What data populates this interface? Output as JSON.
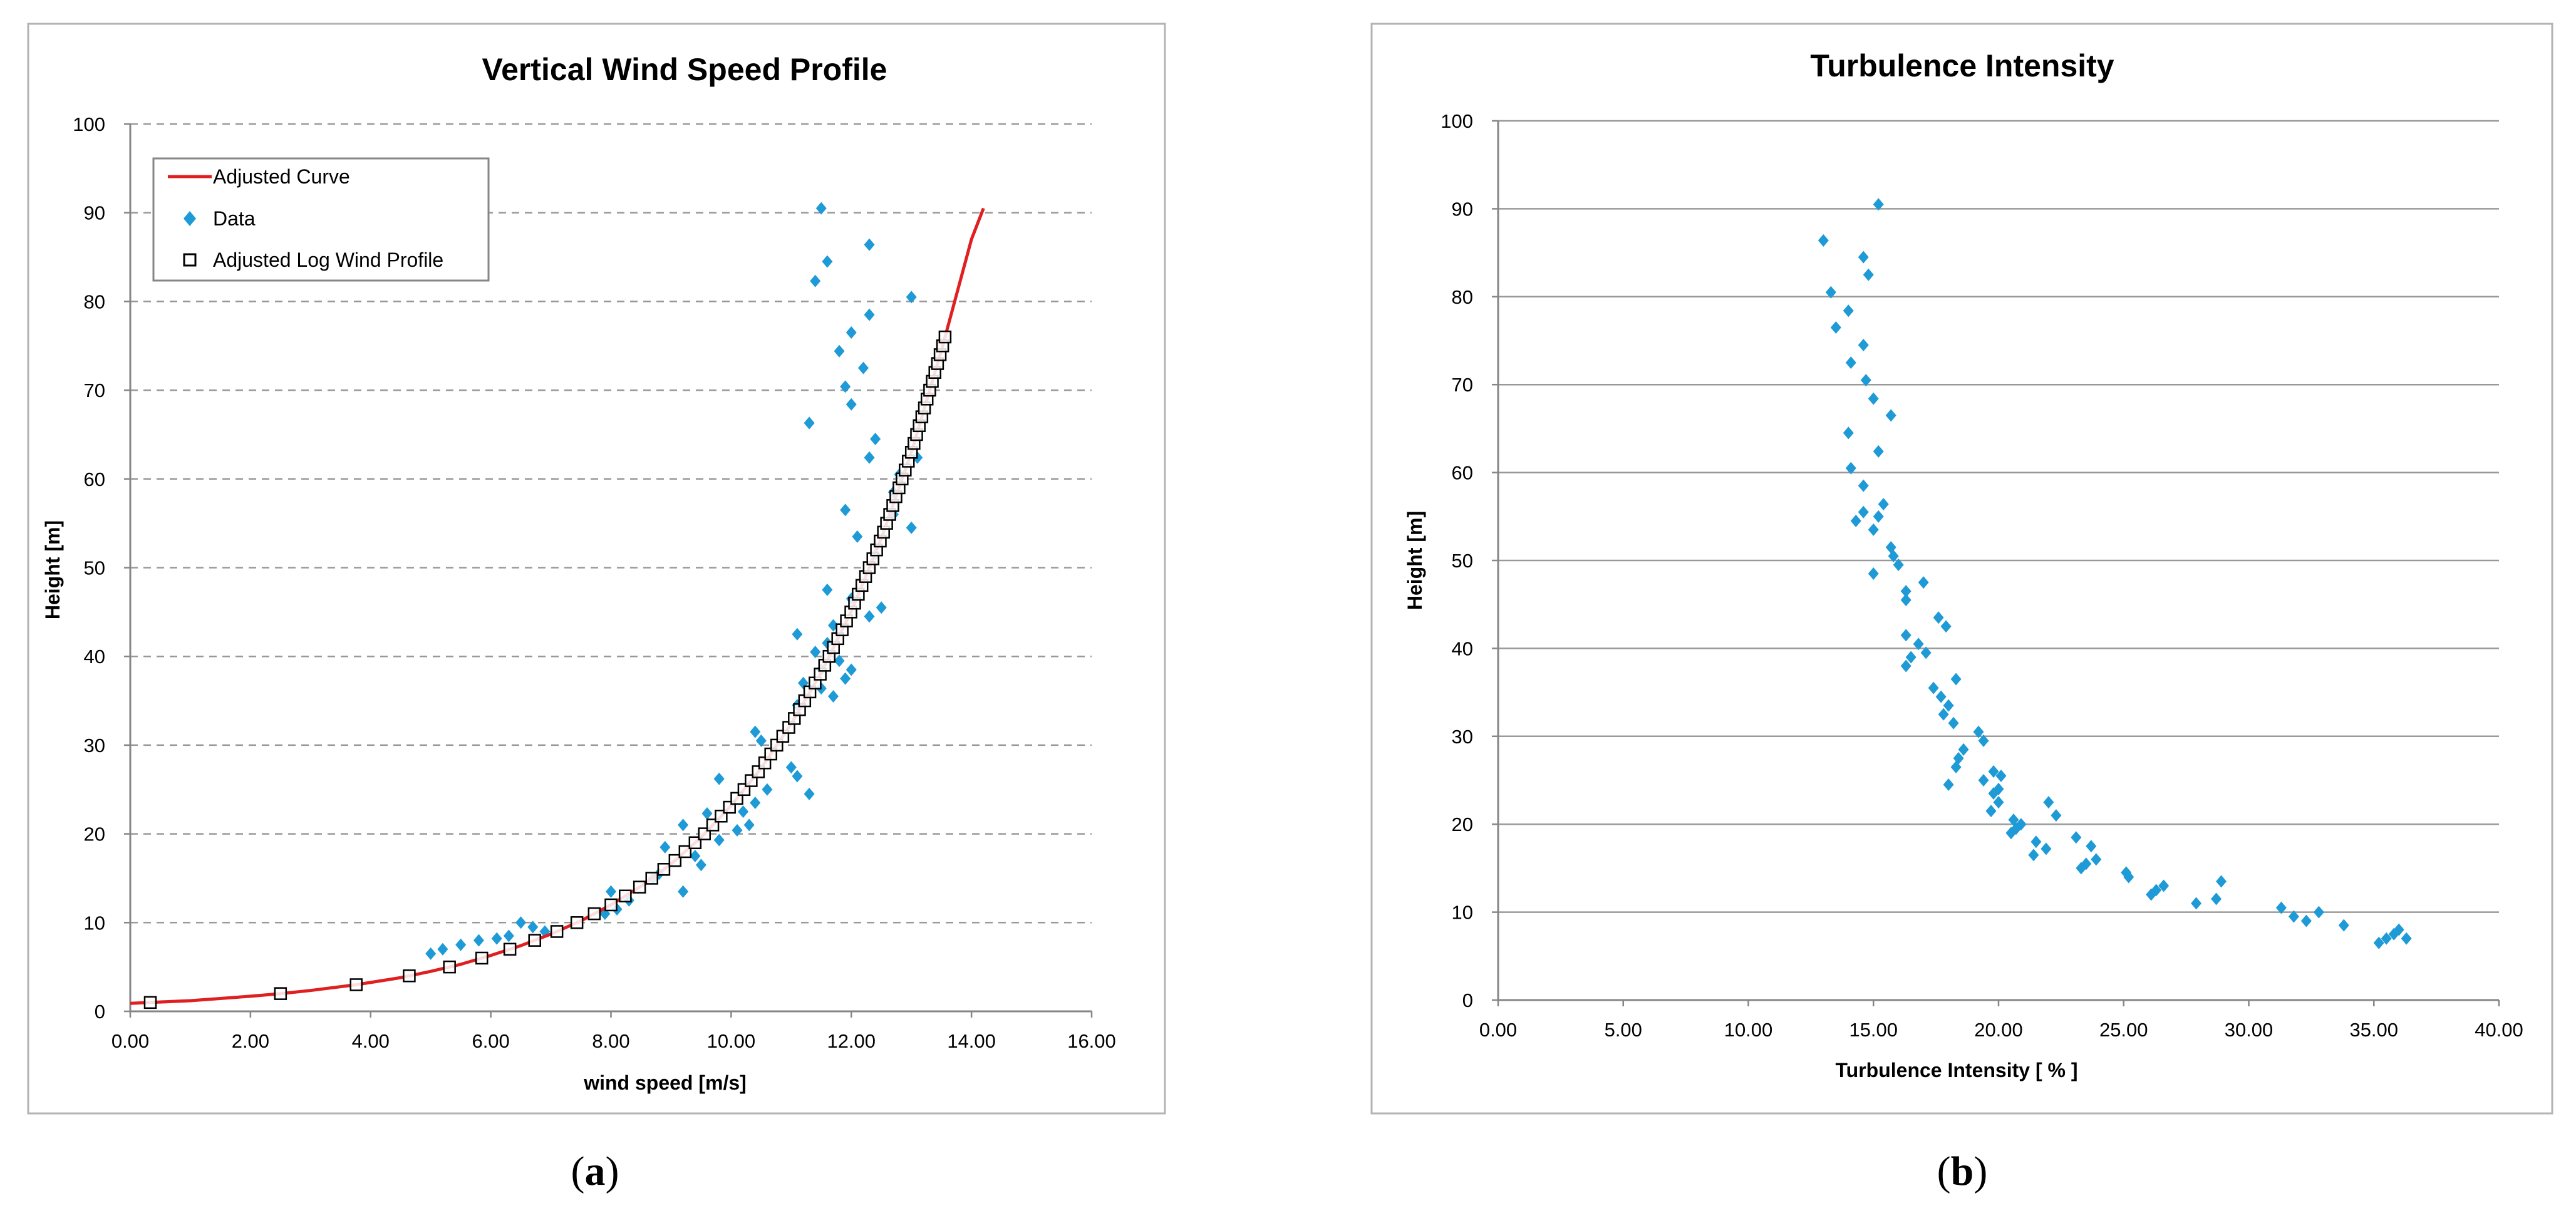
{
  "panel_labels": {
    "a": "a",
    "b": "b"
  },
  "colors": {
    "curve": "#e02020",
    "data": "#1e9ad6",
    "marker_edge": "#000000",
    "grid": "#999999",
    "frame": "#b3b3b3",
    "axis": "#868686"
  },
  "chart_data": [
    {
      "type": "scatter",
      "title": "Vertical Wind Speed Profile",
      "xlabel": "wind speed [m/s]",
      "ylabel": "Height [m]",
      "xlim": [
        0,
        16
      ],
      "ylim": [
        0,
        100
      ],
      "xticks": [
        "0.00",
        "2.00",
        "4.00",
        "6.00",
        "8.00",
        "10.00",
        "12.00",
        "14.00",
        "16.00"
      ],
      "yticks": [
        "0",
        "10",
        "20",
        "30",
        "40",
        "50",
        "60",
        "70",
        "80",
        "90",
        "100"
      ],
      "grid": "horizontal dashed",
      "legend": {
        "position": "top-left",
        "entries": [
          "Adjusted Curve",
          "Data",
          "Adjusted Log Wind Profile"
        ]
      },
      "series": [
        {
          "name": "Adjusted Curve",
          "kind": "line",
          "x": [
            0.0,
            1.0,
            2.0,
            2.5,
            3.0,
            3.76,
            4.5,
            5.0,
            5.5,
            6.0,
            6.5,
            7.0,
            7.5,
            8.0,
            8.5,
            9.0,
            9.5,
            10.0,
            10.5,
            11.0,
            11.5,
            12.0,
            12.5,
            13.0,
            13.5,
            14.0,
            14.2
          ],
          "y": [
            0.9,
            1.2,
            1.7,
            2.0,
            2.35,
            3.0,
            3.8,
            4.5,
            5.3,
            6.3,
            7.4,
            8.7,
            10.2,
            12.0,
            14.1,
            16.6,
            19.6,
            23.2,
            27.4,
            32.4,
            38.2,
            45.1,
            53.3,
            63.0,
            74.5,
            87.0,
            90.5
          ]
        },
        {
          "name": "Data",
          "kind": "points",
          "x": [
            11.5,
            11.4,
            11.6,
            12.3,
            11.3,
            13.0,
            12.3,
            12.0,
            11.8,
            12.2,
            11.9,
            12.0,
            11.3,
            12.4,
            13.1,
            12.3,
            12.8,
            11.9,
            12.7,
            13.0,
            12.7,
            12.1,
            12.4,
            11.6,
            12.3,
            12.5,
            12.0,
            11.7,
            11.1,
            11.6,
            11.8,
            11.4,
            12.0,
            11.9,
            11.5,
            11.7,
            11.1,
            11.2,
            11.5,
            10.4,
            10.5,
            11.0,
            11.1,
            11.3,
            10.6,
            9.8,
            10.4,
            10.2,
            9.2,
            9.6,
            10.1,
            8.9,
            10.3,
            9.5,
            9.8,
            8.8,
            9.4,
            8.0,
            8.3,
            8.1,
            7.9,
            8.7,
            9.2,
            6.5,
            6.7,
            6.9,
            6.3,
            6.1,
            5.8,
            5.5,
            5.2,
            5.0
          ],
          "y": [
            90.5,
            82.3,
            84.5,
            86.4,
            66.3,
            80.5,
            78.5,
            76.5,
            74.4,
            72.5,
            70.4,
            68.4,
            66.3,
            64.5,
            62.4,
            62.4,
            60.5,
            56.5,
            58.5,
            54.5,
            56.0,
            53.5,
            51.5,
            47.5,
            44.5,
            45.5,
            46.5,
            43.5,
            42.5,
            41.5,
            39.5,
            40.5,
            38.5,
            37.5,
            36.4,
            35.5,
            34.5,
            37.0,
            38.5,
            31.5,
            30.5,
            27.5,
            26.5,
            24.5,
            25.0,
            26.2,
            23.5,
            22.5,
            21.0,
            22.3,
            20.4,
            18.5,
            21.0,
            16.5,
            19.3,
            15.5,
            17.5,
            13.5,
            12.5,
            11.5,
            11.0,
            15.0,
            13.5,
            10.0,
            9.5,
            9.0,
            8.5,
            8.2,
            8.0,
            7.5,
            7.0,
            6.5
          ]
        },
        {
          "name": "Adjusted Log Wind Profile",
          "kind": "markers",
          "y": [
            1,
            2,
            3,
            4,
            5,
            6,
            7,
            8,
            9,
            10,
            11,
            12,
            13,
            14,
            15,
            16,
            17,
            18,
            19,
            20,
            21,
            22,
            23,
            24,
            25,
            26,
            27,
            28,
            29,
            30,
            31,
            32,
            33,
            34,
            35,
            36,
            37,
            38,
            39,
            40,
            41,
            42,
            43,
            44,
            45,
            46,
            47,
            48,
            49,
            50,
            51,
            52,
            53,
            54,
            55,
            56,
            57,
            58,
            59,
            60,
            61,
            62,
            63,
            64,
            65,
            66,
            67,
            68,
            69,
            70,
            71,
            72,
            73,
            74,
            75,
            76
          ]
        }
      ]
    },
    {
      "type": "scatter",
      "title": "Turbulence Intensity",
      "xlabel": "Turbulence Intensity [ % ]",
      "ylabel": "Height [m]",
      "xlim": [
        0,
        40
      ],
      "ylim": [
        0,
        100
      ],
      "xticks": [
        "0.00",
        "5.00",
        "10.00",
        "15.00",
        "20.00",
        "25.00",
        "30.00",
        "35.00",
        "40.00"
      ],
      "yticks": [
        "0",
        "10",
        "20",
        "30",
        "40",
        "50",
        "60",
        "70",
        "80",
        "90",
        "100"
      ],
      "grid": "horizontal solid",
      "series": [
        {
          "name": "Data",
          "kind": "points",
          "x": [
            15.2,
            13.0,
            14.6,
            14.8,
            13.3,
            14.0,
            13.5,
            14.6,
            14.1,
            14.7,
            15.0,
            15.7,
            15.2,
            14.0,
            15.4,
            14.1,
            14.6,
            15.2,
            14.3,
            14.6,
            15.0,
            15.7,
            15.8,
            16.3,
            15.0,
            17.0,
            16.0,
            16.3,
            17.6,
            17.9,
            16.3,
            16.8,
            17.1,
            16.5,
            16.3,
            18.3,
            17.4,
            17.7,
            18.0,
            17.8,
            18.2,
            19.2,
            18.6,
            18.4,
            18.3,
            19.4,
            19.8,
            18.0,
            20.1,
            19.4,
            20.0,
            19.8,
            20.0,
            19.7,
            22.0,
            22.3,
            20.6,
            20.9,
            20.7,
            20.5,
            23.1,
            21.5,
            21.9,
            21.4,
            23.7,
            23.9,
            23.5,
            23.3,
            25.1,
            25.2,
            26.6,
            26.3,
            26.1,
            28.9,
            28.7,
            27.9,
            31.3,
            31.8,
            32.8,
            32.3,
            33.8,
            36.0,
            36.3,
            35.8,
            35.5,
            35.2
          ],
          "y": [
            90.5,
            86.4,
            84.5,
            82.5,
            80.5,
            78.4,
            76.5,
            74.5,
            72.5,
            70.5,
            68.4,
            66.5,
            62.4,
            64.5,
            56.4,
            60.5,
            58.5,
            55.0,
            54.5,
            55.5,
            53.5,
            51.5,
            50.5,
            46.5,
            48.5,
            47.5,
            49.5,
            45.5,
            43.5,
            42.5,
            41.5,
            40.5,
            39.5,
            39.0,
            38.0,
            36.5,
            35.5,
            34.5,
            33.5,
            32.5,
            31.5,
            30.5,
            28.5,
            27.5,
            26.5,
            29.5,
            26.0,
            24.5,
            25.5,
            25.0,
            24.0,
            23.5,
            22.5,
            21.5,
            22.5,
            21.0,
            20.5,
            20.0,
            19.5,
            19.0,
            18.5,
            18.0,
            17.2,
            16.5,
            17.5,
            16.0,
            15.5,
            15.0,
            14.5,
            14.0,
            13.0,
            12.5,
            12.0,
            13.5,
            11.5,
            11.0,
            10.5,
            9.5,
            10.0,
            9.0,
            8.5,
            8.0,
            7.0,
            7.5,
            7.0,
            6.5
          ]
        }
      ]
    }
  ]
}
